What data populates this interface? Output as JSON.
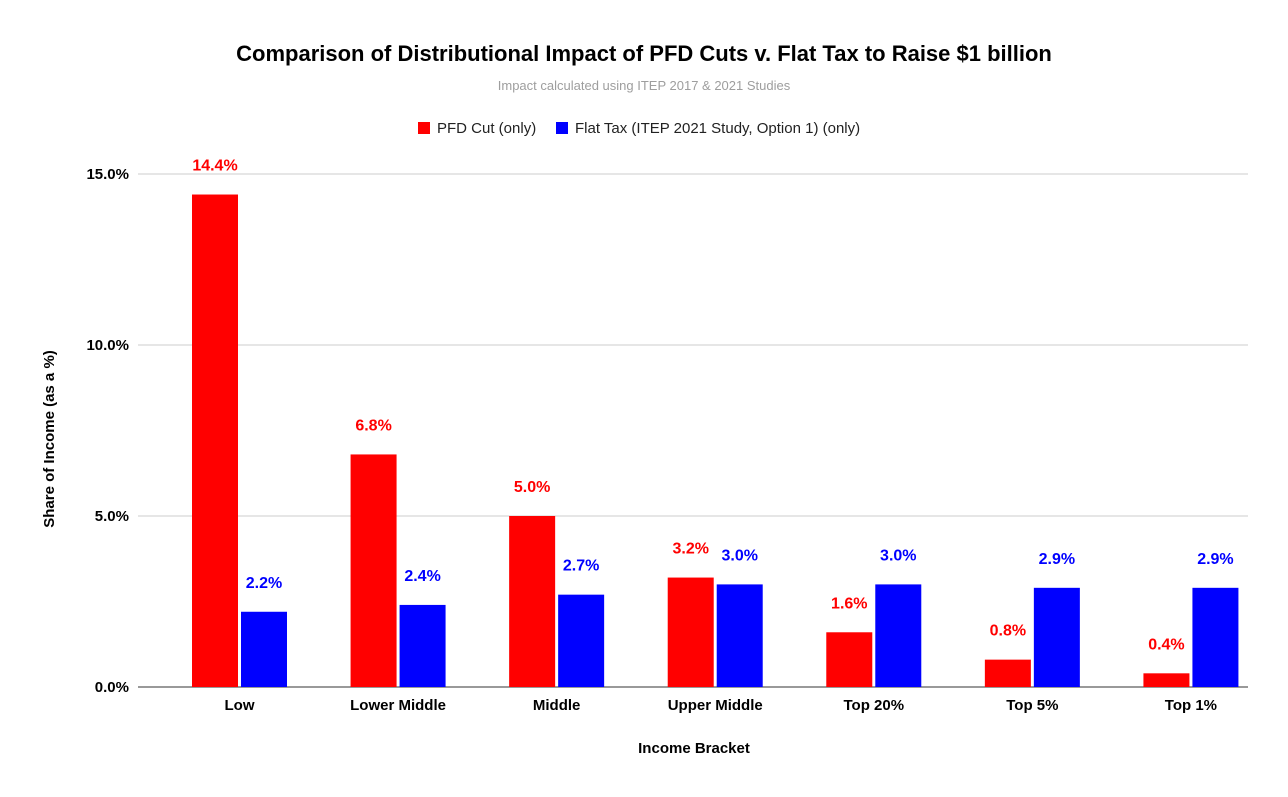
{
  "chart_data": {
    "type": "bar",
    "title": "Comparison of Distributional Impact of PFD Cuts v. Flat Tax to Raise $1 billion",
    "subtitle": "Impact calculated using ITEP 2017 & 2021 Studies",
    "xlabel": "Income Bracket",
    "ylabel": "Share of Income (as a %)",
    "ylim": [
      0,
      15
    ],
    "yticks": [
      0,
      5,
      10,
      15
    ],
    "ytick_labels": [
      "0.0%",
      "5.0%",
      "10.0%",
      "15.0%"
    ],
    "grid": true,
    "legend_position": "top",
    "categories": [
      "Low",
      "Lower Middle",
      "Middle",
      "Upper Middle",
      "Top 20%",
      "Top 5%",
      "Top 1%"
    ],
    "series": [
      {
        "name": "PFD Cut (only)",
        "color": "#ff0000",
        "values": [
          14.4,
          6.8,
          5.0,
          3.2,
          1.6,
          0.8,
          0.4
        ],
        "labels": [
          "14.4%",
          "6.8%",
          "5.0%",
          "3.2%",
          "1.6%",
          "0.8%",
          "0.4%"
        ]
      },
      {
        "name": "Flat Tax (ITEP 2021 Study, Option 1) (only)",
        "color": "#0000ff",
        "values": [
          2.2,
          2.4,
          2.7,
          3.0,
          3.0,
          2.9,
          2.9
        ],
        "labels": [
          "2.2%",
          "2.4%",
          "2.7%",
          "3.0%",
          "3.0%",
          "2.9%",
          "2.9%"
        ]
      }
    ]
  }
}
